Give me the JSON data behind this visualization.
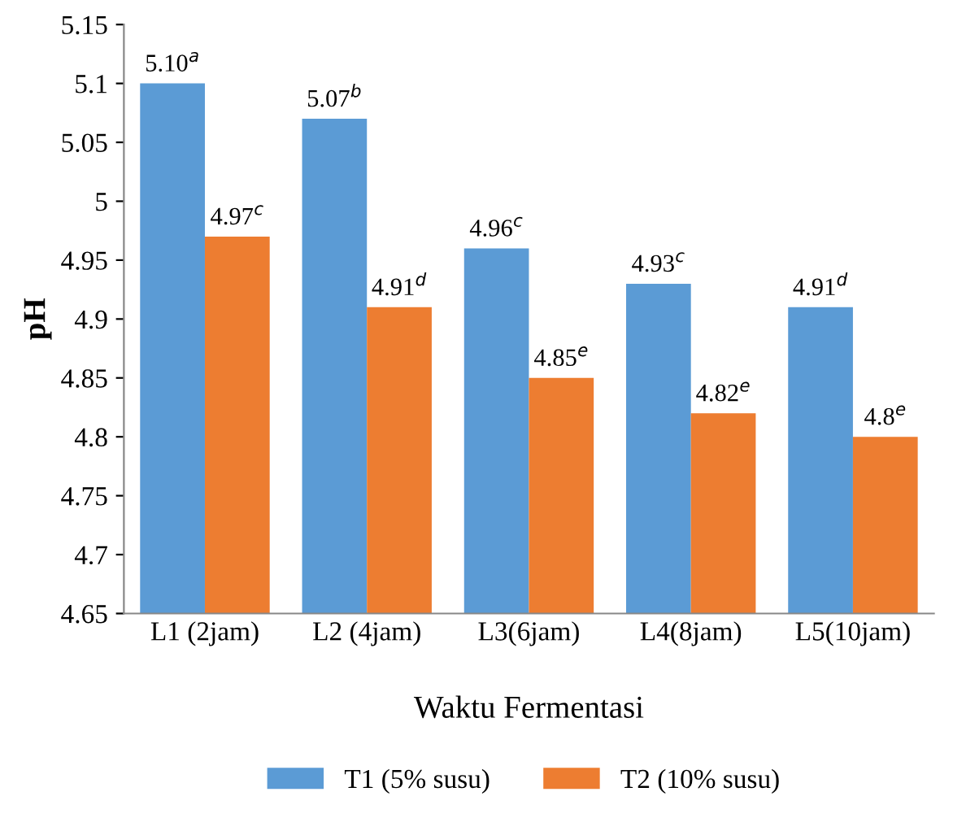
{
  "chart_data": {
    "type": "bar",
    "xlabel": "Waktu Fermentasi",
    "ylabel": "pH",
    "categories": [
      "L1 (2jam)",
      "L2 (4jam)",
      "L3(6jam)",
      "L4(8jam)",
      "L5(10jam)"
    ],
    "series": [
      {
        "name": "T1 (5% susu)",
        "color": "#5b9bd5",
        "values": [
          5.1,
          5.07,
          4.96,
          4.93,
          4.91
        ],
        "value_labels": [
          "5.10$^{a}$",
          "5.07$^{b}$",
          "4.96$^{c}$",
          "4.93$^{c}$",
          "4.91$^{d}$"
        ]
      },
      {
        "name": "T2 (10% susu)",
        "color": "#ed7d31",
        "values": [
          4.97,
          4.91,
          4.85,
          4.82,
          4.8
        ],
        "value_labels": [
          "4.97$^{c}$",
          "4.91$^{d}$",
          "4.85$^{e}$",
          "4.82$^{e}$",
          "4.8$^{e}$"
        ]
      }
    ],
    "ylim": [
      4.65,
      5.15
    ],
    "yticks": [
      4.65,
      4.7,
      4.75,
      4.8,
      4.85,
      4.9,
      4.95,
      5,
      5.05,
      5.1,
      5.15
    ],
    "grid": false,
    "legend": "bottom"
  }
}
